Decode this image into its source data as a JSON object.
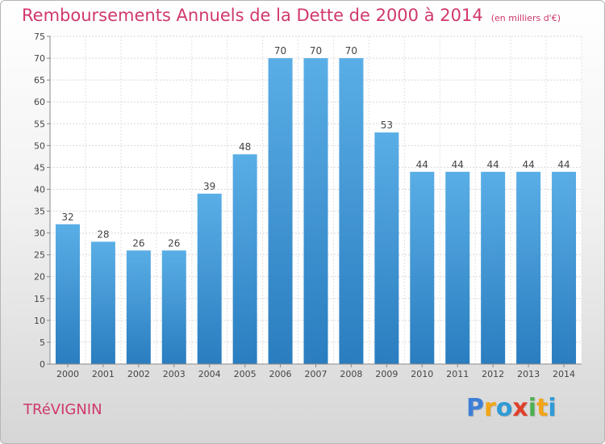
{
  "chart_data": {
    "type": "bar",
    "title": "Remboursements Annuels de la Dette de 2000 à 2014",
    "subtitle": "(en milliers d'€)",
    "categories": [
      "2000",
      "2001",
      "2002",
      "2003",
      "2004",
      "2005",
      "2006",
      "2007",
      "2008",
      "2009",
      "2010",
      "2011",
      "2012",
      "2013",
      "2014"
    ],
    "values": [
      32,
      28,
      26,
      26,
      39,
      48,
      70,
      70,
      70,
      53,
      44,
      44,
      44,
      44,
      44
    ],
    "ylim": [
      0,
      75
    ],
    "yticks": [
      0,
      5,
      10,
      15,
      20,
      25,
      30,
      35,
      40,
      45,
      50,
      55,
      60,
      65,
      70,
      75
    ],
    "grid": true,
    "bar_color": "#3d97d6"
  },
  "commune": "TRéVIGNIN",
  "logo": {
    "letters": [
      "P",
      "r",
      "o",
      "x",
      "i",
      "t",
      "i"
    ],
    "colors": [
      "#3d7fd6",
      "#f2a516",
      "#2f9bd6",
      "#e0402a",
      "#4caf50",
      "#f2a516",
      "#2f9bd6"
    ]
  },
  "colors": {
    "accent": "#d0386e"
  }
}
